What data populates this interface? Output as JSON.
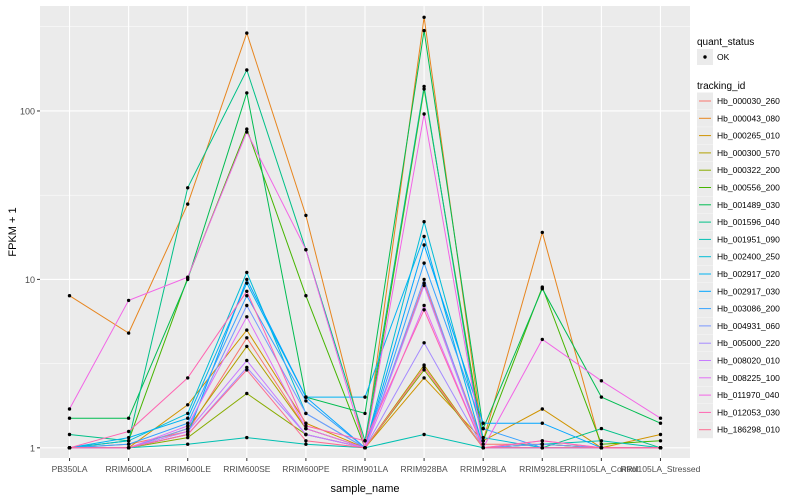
{
  "chart_data": {
    "type": "line",
    "xlabel": "sample_name",
    "ylabel": "FPKM + 1",
    "y_scale": "log10",
    "ylim": [
      0.87,
      420
    ],
    "y_ticks": [
      {
        "value": 1,
        "label": "1"
      },
      {
        "value": 10,
        "label": "10"
      },
      {
        "value": 100,
        "label": "100"
      }
    ],
    "grid": true,
    "background": "#EBEBEB",
    "legend_position": "right",
    "categories": [
      "PB350LA",
      "RRIM600LA",
      "RRIM600LE",
      "RRIM600SE",
      "RRIM600PE",
      "RRIM901LA",
      "RRIM928BA",
      "RRIM928LA",
      "RRIM928LE",
      "RRII105LA_Control",
      "RRII105LA_Stressed"
    ],
    "points_legend": {
      "title": "quant_status",
      "items": [
        {
          "label": "OK",
          "marker": "point"
        }
      ]
    },
    "lines_legend_title": "tracking_id",
    "series": [
      {
        "name": "Hb_000030_260",
        "color": "#F8766D",
        "values": [
          1.0,
          1.05,
          1.25,
          4.5,
          1.3,
          1.0,
          9.5,
          1.05,
          1.05,
          1.0,
          1.0
        ]
      },
      {
        "name": "Hb_000043_080",
        "color": "#E7851E",
        "values": [
          8.0,
          4.8,
          28.0,
          290.0,
          24.0,
          1.0,
          360.0,
          1.1,
          19.0,
          1.0,
          1.0
        ]
      },
      {
        "name": "Hb_000265_010",
        "color": "#D09400",
        "values": [
          1.0,
          1.0,
          1.8,
          5.0,
          1.4,
          1.0,
          2.6,
          1.1,
          1.7,
          1.0,
          1.2
        ]
      },
      {
        "name": "Hb_000300_570",
        "color": "#B2A100",
        "values": [
          1.0,
          1.0,
          1.3,
          4.0,
          1.3,
          1.0,
          3.1,
          1.0,
          1.05,
          1.0,
          1.0
        ]
      },
      {
        "name": "Hb_000322_200",
        "color": "#89AC00",
        "values": [
          1.0,
          1.0,
          1.15,
          2.1,
          1.2,
          1.0,
          2.9,
          1.0,
          1.05,
          1.0,
          1.0
        ]
      },
      {
        "name": "Hb_000556_200",
        "color": "#45B500",
        "values": [
          1.0,
          1.1,
          10.2,
          78.0,
          8.0,
          1.0,
          135.0,
          1.1,
          9.0,
          1.05,
          1.1
        ]
      },
      {
        "name": "Hb_001489_030",
        "color": "#00BC51",
        "values": [
          1.5,
          1.5,
          10.0,
          128.0,
          2.0,
          1.6,
          300.0,
          1.3,
          8.8,
          2.0,
          1.4
        ]
      },
      {
        "name": "Hb_001596_040",
        "color": "#00C087",
        "values": [
          1.2,
          1.1,
          35.0,
          175.0,
          15.0,
          1.1,
          140.0,
          1.0,
          1.0,
          1.3,
          1.0
        ]
      },
      {
        "name": "Hb_001951_090",
        "color": "#00C0B2",
        "values": [
          1.0,
          1.0,
          1.05,
          1.15,
          1.05,
          1.0,
          1.2,
          1.0,
          1.05,
          1.1,
          1.0
        ]
      },
      {
        "name": "Hb_002400_250",
        "color": "#00BCD6",
        "values": [
          1.0,
          1.1,
          1.6,
          11.0,
          1.6,
          1.0,
          22.0,
          1.15,
          1.0,
          1.0,
          1.0
        ]
      },
      {
        "name": "Hb_002917_020",
        "color": "#00B3F2",
        "values": [
          1.0,
          1.15,
          1.5,
          9.5,
          2.0,
          2.0,
          18.0,
          1.0,
          1.0,
          1.0,
          1.0
        ]
      },
      {
        "name": "Hb_002917_030",
        "color": "#00A5FF",
        "values": [
          1.0,
          1.0,
          1.2,
          10.0,
          2.0,
          1.0,
          16.0,
          1.4,
          1.4,
          1.0,
          1.0
        ]
      },
      {
        "name": "Hb_003086_200",
        "color": "#35A2FF",
        "values": [
          1.0,
          1.05,
          1.4,
          8.0,
          1.9,
          1.0,
          12.5,
          1.3,
          1.0,
          1.0,
          1.0
        ]
      },
      {
        "name": "Hb_004931_060",
        "color": "#7997FF",
        "values": [
          1.0,
          1.0,
          1.3,
          7.0,
          1.6,
          1.0,
          10.0,
          1.0,
          1.05,
          1.0,
          1.0
        ]
      },
      {
        "name": "Hb_005000_220",
        "color": "#A58AFF",
        "values": [
          1.0,
          1.0,
          1.2,
          3.0,
          1.2,
          1.0,
          4.2,
          1.0,
          1.0,
          1.0,
          1.0
        ]
      },
      {
        "name": "Hb_008020_010",
        "color": "#C77CFF",
        "values": [
          1.0,
          1.0,
          1.25,
          3.3,
          1.2,
          1.0,
          9.2,
          1.0,
          1.0,
          1.0,
          1.0
        ]
      },
      {
        "name": "Hb_008225_100",
        "color": "#E070F6",
        "values": [
          1.0,
          1.0,
          1.35,
          6.0,
          1.3,
          1.0,
          7.0,
          1.0,
          1.1,
          1.0,
          1.0
        ]
      },
      {
        "name": "Hb_011970_040",
        "color": "#F265E6",
        "values": [
          1.7,
          7.5,
          10.3,
          75.0,
          15.0,
          1.0,
          96.0,
          1.0,
          4.4,
          2.5,
          1.5
        ]
      },
      {
        "name": "Hb_012053_030",
        "color": "#FF64B1",
        "values": [
          1.0,
          1.25,
          2.6,
          8.5,
          1.35,
          1.1,
          6.6,
          1.0,
          1.1,
          1.0,
          1.0
        ]
      },
      {
        "name": "Hb_186298_010",
        "color": "#FD6C92",
        "values": [
          1.0,
          1.0,
          1.2,
          2.9,
          1.1,
          1.0,
          3.0,
          1.0,
          1.0,
          1.0,
          1.0
        ]
      }
    ]
  }
}
